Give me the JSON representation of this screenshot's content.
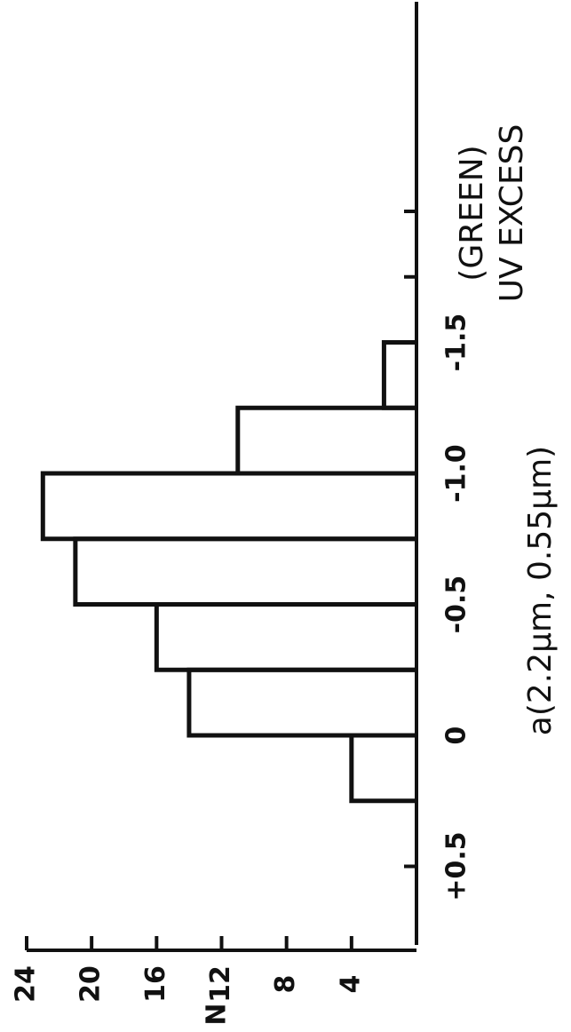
{
  "chart_data": {
    "type": "histogram",
    "title": "UV EXCESS",
    "subtitle": "(GREEN)",
    "x_label": "a(2.2μm, 0.55μm)",
    "y_label": "N",
    "bins": [
      0.25,
      0,
      -0.25,
      -0.5,
      -0.75,
      -1.0,
      -1.25,
      -1.5
    ],
    "values": [
      4,
      14,
      16,
      21,
      23,
      11,
      2
    ],
    "color": "#111111",
    "xlim": [
      0.8,
      -2.8
    ],
    "xticks": [
      {
        "value": 0.5,
        "label": "+0.5"
      },
      0,
      -0.5,
      {
        "value": -1.0,
        "label": "-1.0"
      },
      -1.5
    ],
    "xminor_ticks": [
      -1.75,
      -2.0
    ],
    "ylim": [
      0,
      24
    ],
    "yticks": [
      4,
      8,
      12,
      16,
      20,
      24
    ]
  }
}
